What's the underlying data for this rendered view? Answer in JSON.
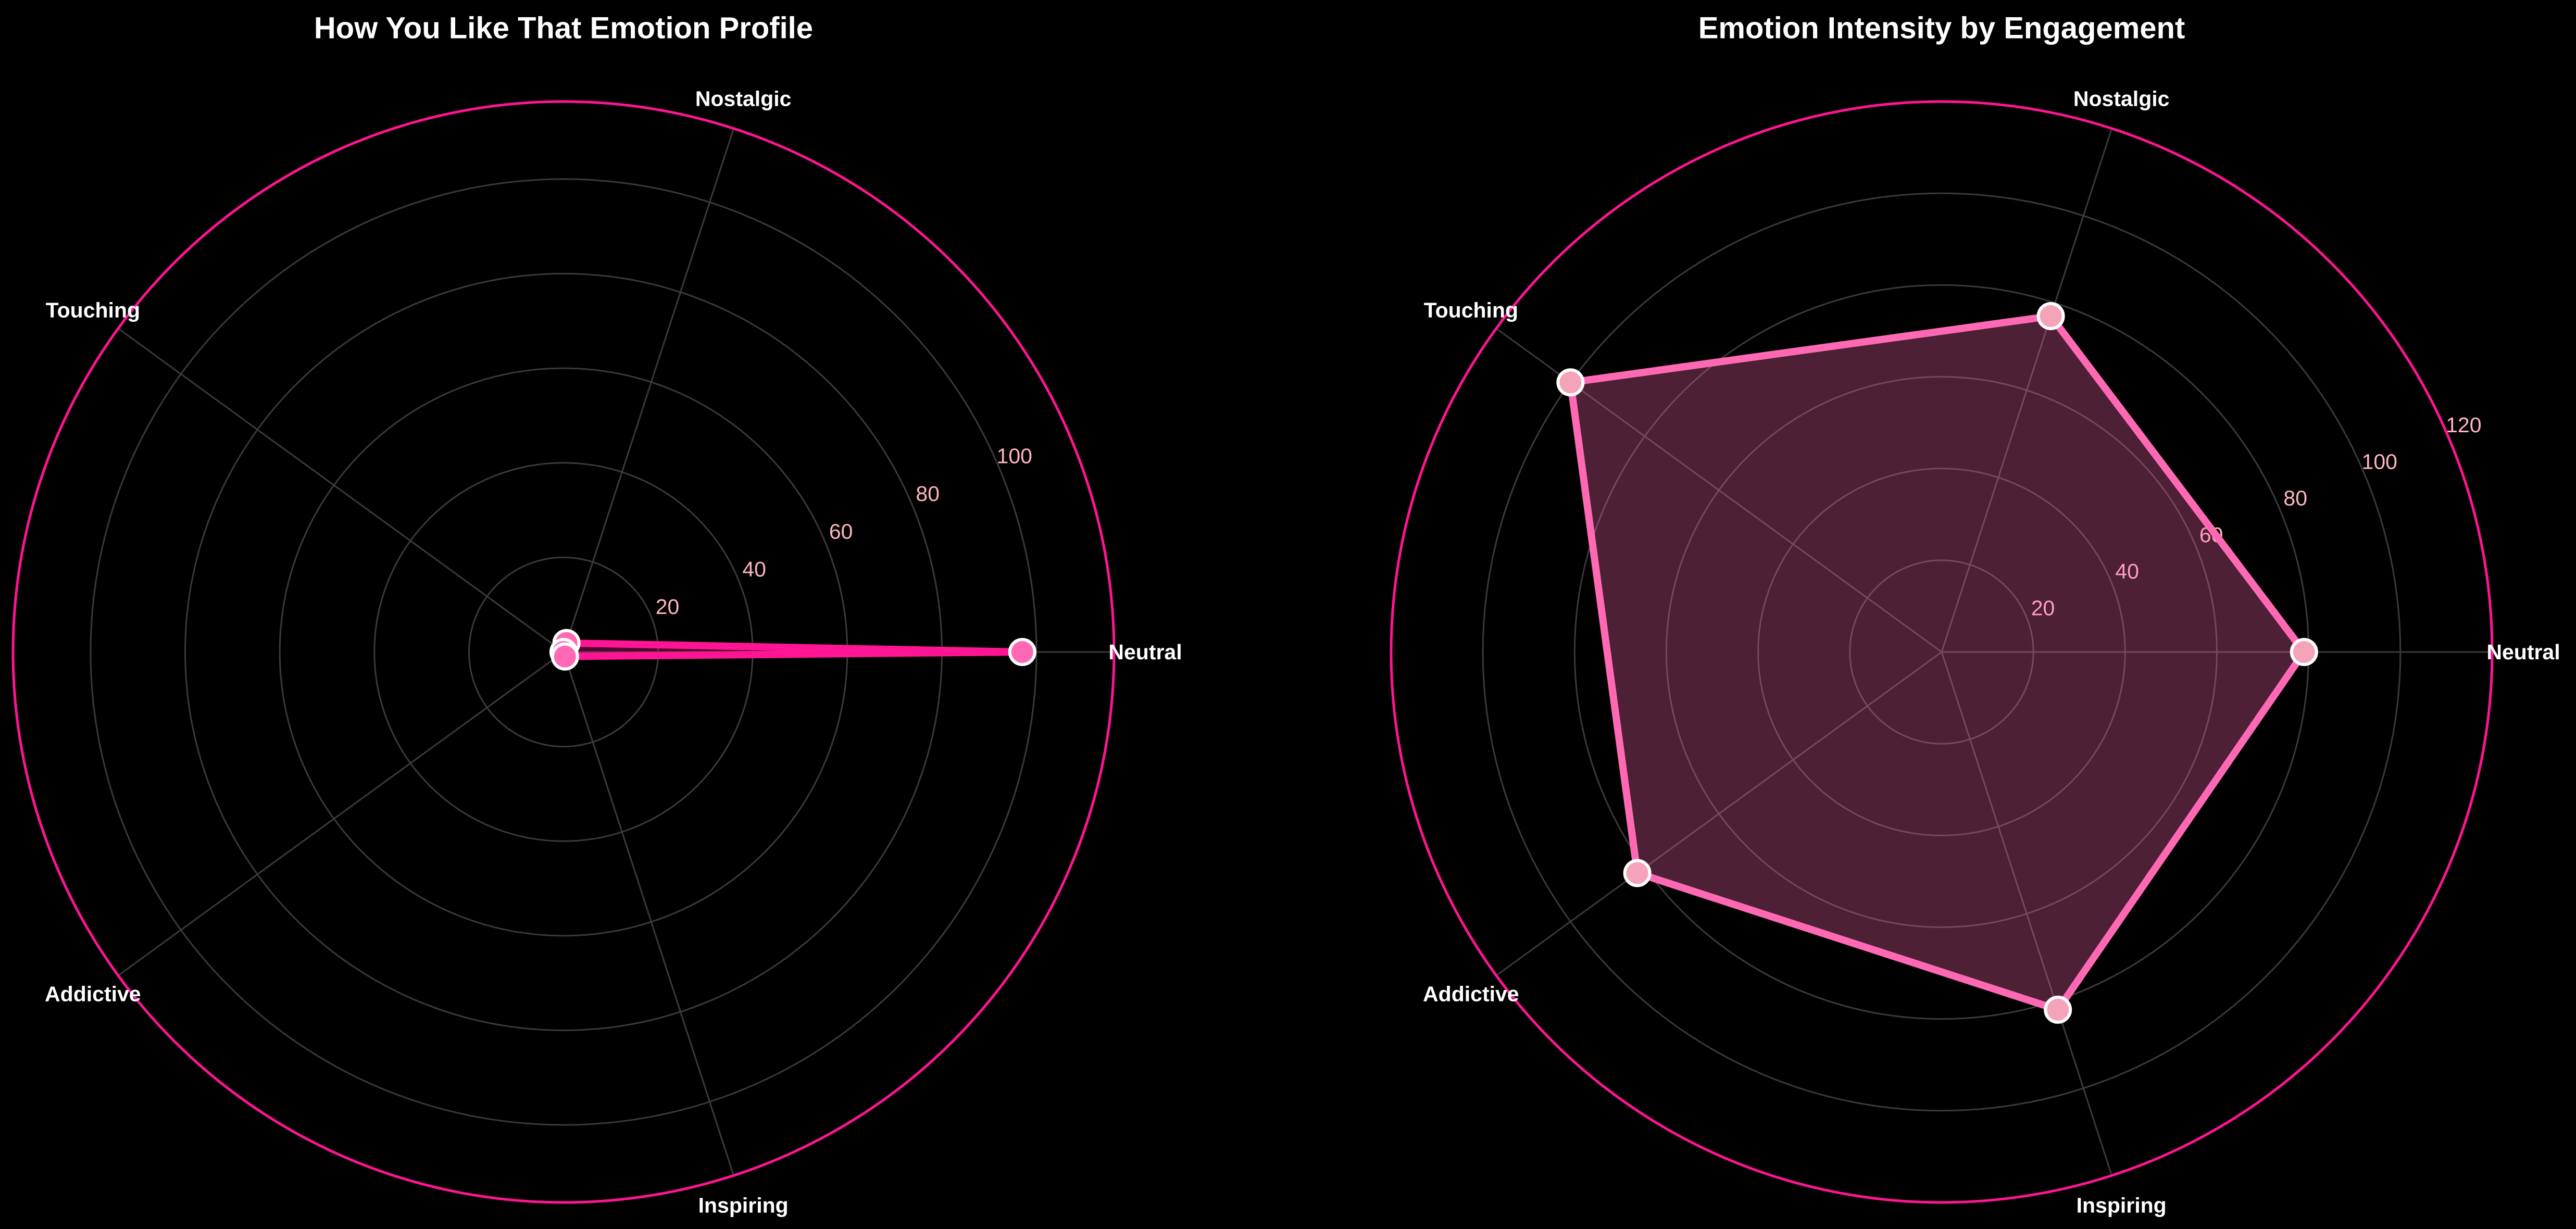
{
  "background": "#000000",
  "chart_data": [
    {
      "type": "area",
      "polar": true,
      "title": "How You Like That Emotion Profile",
      "categories": [
        "Neutral",
        "Nostalgic",
        "Touching",
        "Addictive",
        "Inspiring"
      ],
      "values": [
        97,
        2,
        0,
        0,
        1
      ],
      "r_ticks": [
        20,
        40,
        60,
        80,
        100
      ],
      "ylim": [
        0,
        116.4
      ],
      "grid": true,
      "colors": {
        "line": "#FF1493",
        "fill": "#FF1493",
        "marker": "#FF69B4",
        "marker_edge": "#FFFFFF",
        "frame": "#FF1493",
        "grid": "#3A3A3A",
        "tick_label": "#FFB6C1",
        "category_label": "#FFFFFF",
        "title": "#FFFFFF"
      }
    },
    {
      "type": "area",
      "polar": true,
      "title": "Emotion Intensity by Engagement",
      "categories": [
        "Neutral",
        "Nostalgic",
        "Touching",
        "Addictive",
        "Inspiring"
      ],
      "values": [
        79,
        77,
        100,
        82,
        82
      ],
      "r_ticks": [
        20,
        40,
        60,
        80,
        100,
        120
      ],
      "ylim": [
        0,
        120
      ],
      "grid": true,
      "colors": {
        "line": "#FF69B4",
        "fill": "#FF69B4",
        "marker": "#F4A3B8",
        "marker_edge": "#FFFFFF",
        "frame": "#FF1493",
        "grid": "#3A3A3A",
        "tick_label": "#FFB6C1",
        "category_label": "#FFFFFF",
        "title": "#FFFFFF"
      }
    }
  ]
}
